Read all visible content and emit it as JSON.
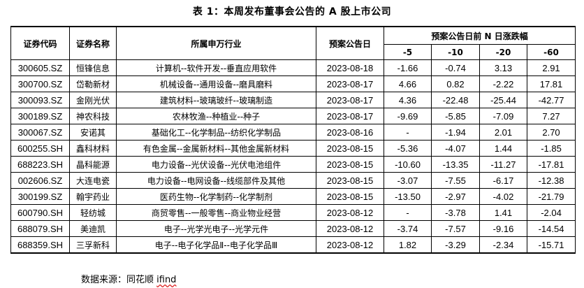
{
  "title": "表 1：本周发布董事会公告的 A 股上市公司",
  "headers": {
    "code": "证券代码",
    "name": "证券名称",
    "industry": "所属申万行业",
    "date": "预案公告日",
    "change_group": "预案公告日前 N 日涨跌幅",
    "n_cols": [
      "-5",
      "-10",
      "-20",
      "-60"
    ]
  },
  "rows": [
    {
      "code": "300605.SZ",
      "name": "恒锋信息",
      "industry": "计算机--软件开发--垂直应用软件",
      "date": "2023-08-18",
      "v5": "-1.66",
      "v10": "-0.74",
      "v20": "3.13",
      "v60": "2.91"
    },
    {
      "code": "300700.SZ",
      "name": "岱勒新材",
      "industry": "机械设备--通用设备--磨具磨料",
      "date": "2023-08-17",
      "v5": "4.66",
      "v10": "0.82",
      "v20": "-2.22",
      "v60": "17.81"
    },
    {
      "code": "300093.SZ",
      "name": "金刚光伏",
      "industry": "建筑材料--玻璃玻纤--玻璃制造",
      "date": "2023-08-17",
      "v5": "4.36",
      "v10": "-22.48",
      "v20": "-25.44",
      "v60": "-42.77"
    },
    {
      "code": "300189.SZ",
      "name": "神农科技",
      "industry": "农林牧渔--种植业--种子",
      "date": "2023-08-17",
      "v5": "-9.69",
      "v10": "-5.85",
      "v20": "-7.09",
      "v60": "7.27"
    },
    {
      "code": "300067.SZ",
      "name": "安诺其",
      "industry": "基础化工--化学制品--纺织化学制品",
      "date": "2023-08-16",
      "v5": "-",
      "v10": "-1.94",
      "v20": "2.01",
      "v60": "2.70"
    },
    {
      "code": "600255.SH",
      "name": "鑫科材料",
      "industry": "有色金属--金属新材料--其他金属新材料",
      "date": "2023-08-15",
      "v5": "-5.36",
      "v10": "-4.07",
      "v20": "1.44",
      "v60": "-1.85"
    },
    {
      "code": "688223.SH",
      "name": "晶科能源",
      "industry": "电力设备--光伏设备--光伏电池组件",
      "date": "2023-08-15",
      "v5": "-10.60",
      "v10": "-13.35",
      "v20": "-11.27",
      "v60": "-17.81"
    },
    {
      "code": "002606.SZ",
      "name": "大连电瓷",
      "industry": "电力设备--电网设备--线缆部件及其他",
      "date": "2023-08-15",
      "v5": "-3.07",
      "v10": "-7.55",
      "v20": "-6.17",
      "v60": "-12.38"
    },
    {
      "code": "300199.SZ",
      "name": "翰宇药业",
      "industry": "医药生物--化学制药--化学制剂",
      "date": "2023-08-15",
      "v5": "-13.50",
      "v10": "-2.97",
      "v20": "-4.02",
      "v60": "-21.79"
    },
    {
      "code": "600790.SH",
      "name": "轻纺城",
      "industry": "商贸零售--一般零售--商业物业经营",
      "date": "2023-08-12",
      "v5": "-",
      "v10": "-3.78",
      "v20": "1.41",
      "v60": "-2.04"
    },
    {
      "code": "688079.SH",
      "name": "美迪凯",
      "industry": "电子--光学光电子--光学元件",
      "date": "2023-08-12",
      "v5": "-3.74",
      "v10": "-7.57",
      "v20": "-9.16",
      "v60": "-14.54"
    },
    {
      "code": "688359.SH",
      "name": "三孚新科",
      "industry": "电子--电子化学品Ⅱ--电子化学品Ⅲ",
      "date": "2023-08-12",
      "v5": "1.82",
      "v10": "-3.29",
      "v20": "-2.34",
      "v60": "-15.71"
    }
  ],
  "source": {
    "prefix": "数据来源：同花顺 ",
    "highlight": "ifind"
  }
}
